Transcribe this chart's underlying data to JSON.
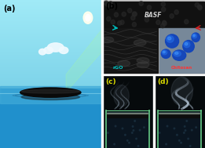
{
  "fig_width": 2.61,
  "fig_height": 1.89,
  "dpi": 100,
  "panel_a": {
    "label": "(a)",
    "sky_top": "#7dd8f0",
    "sky_bottom": "#55c8e8",
    "water_deep": "#1a7ab8",
    "water_surface": "#3aabe0",
    "horizon_line": "#88ddff",
    "fabric_color": "#0a0a0a",
    "sun_color": "#ffffaa",
    "ray_color": "#ccff88",
    "cloud_color": "#e8f8ff"
  },
  "panel_b": {
    "label": "(b)",
    "bg_color": "#bbbbbb",
    "fabric_top_color": "#111111",
    "basf_text_color": "#cccccc",
    "rgo_bg": "#1a1a1a",
    "rgo_text_color": "#00dddd",
    "rgo_highlight": "#444444",
    "chitosan_bg": "#8899aa",
    "chitosan_blob_dark": "#1144aa",
    "chitosan_blob_light": "#2266dd",
    "chitosan_blob_bright": "#3388ff",
    "chitosan_text_color": "#ff3333",
    "arrow_cyan": "#00bbbb",
    "arrow_red": "#cc2222"
  },
  "panel_c": {
    "label": "(c)",
    "bg_color": "#050808",
    "steam_color": "#aabbcc",
    "container_edge": "#88cc99",
    "water_color": "#0a1a22",
    "fabric_dark": "#0a0a0a",
    "label_color": "#dddd00"
  },
  "panel_d": {
    "label": "(d)",
    "bg_color": "#050808",
    "steam_color": "#bbccdd",
    "container_edge": "#88cc99",
    "water_color": "#0a1a22",
    "fabric_dark": "#0a0a0a",
    "label_color": "#dddd00"
  }
}
